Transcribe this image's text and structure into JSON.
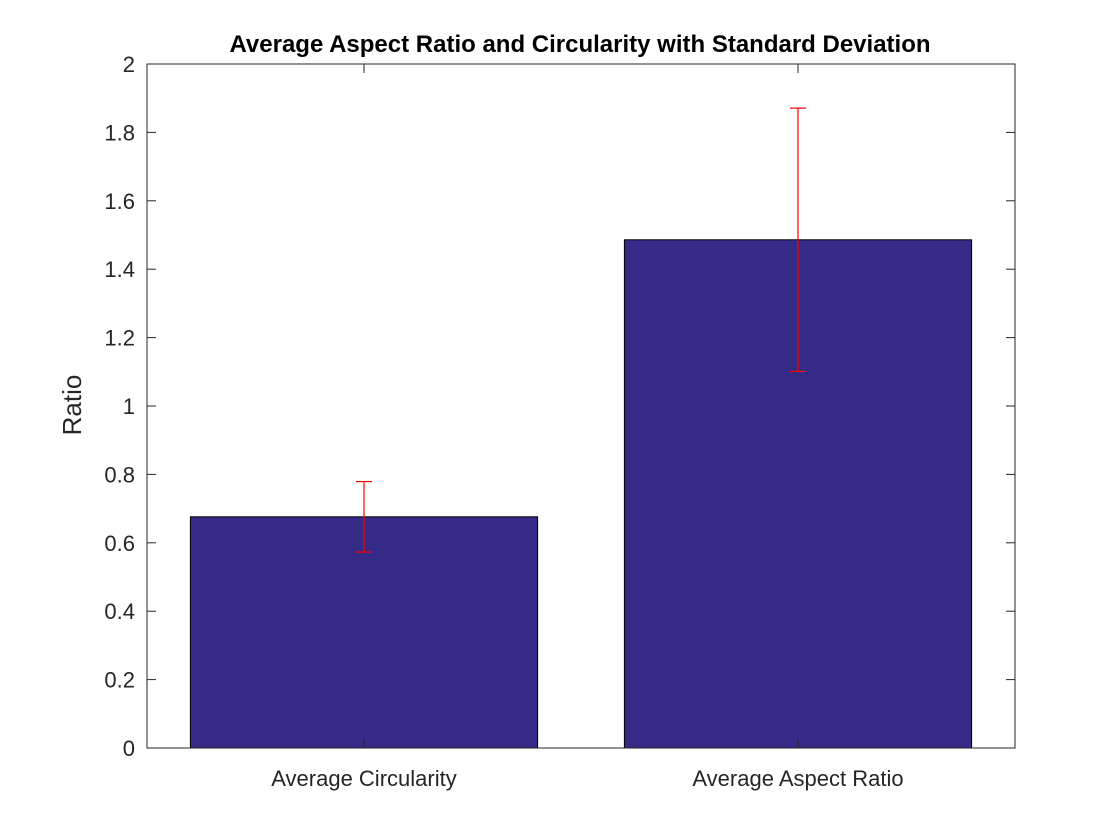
{
  "chart_data": {
    "type": "bar",
    "title": "Average Aspect Ratio and Circularity with Standard Deviation",
    "xlabel": "",
    "ylabel": "Ratio",
    "categories": [
      "Average Circularity",
      "Average Aspect Ratio"
    ],
    "values": [
      0.676,
      1.486
    ],
    "error": [
      0.103,
      0.385
    ],
    "ylim": [
      0,
      2
    ],
    "yticks": [
      "0",
      "0.2",
      "0.4",
      "0.6",
      "0.8",
      "1",
      "1.2",
      "1.4",
      "1.6",
      "1.8",
      "2"
    ],
    "ytick_values": [
      0,
      0.2,
      0.4,
      0.6,
      0.8,
      1,
      1.2,
      1.4,
      1.6,
      1.8,
      2
    ],
    "bar_color": "#352a87",
    "error_color": "#ff0000",
    "grid": false,
    "legend": "none"
  }
}
